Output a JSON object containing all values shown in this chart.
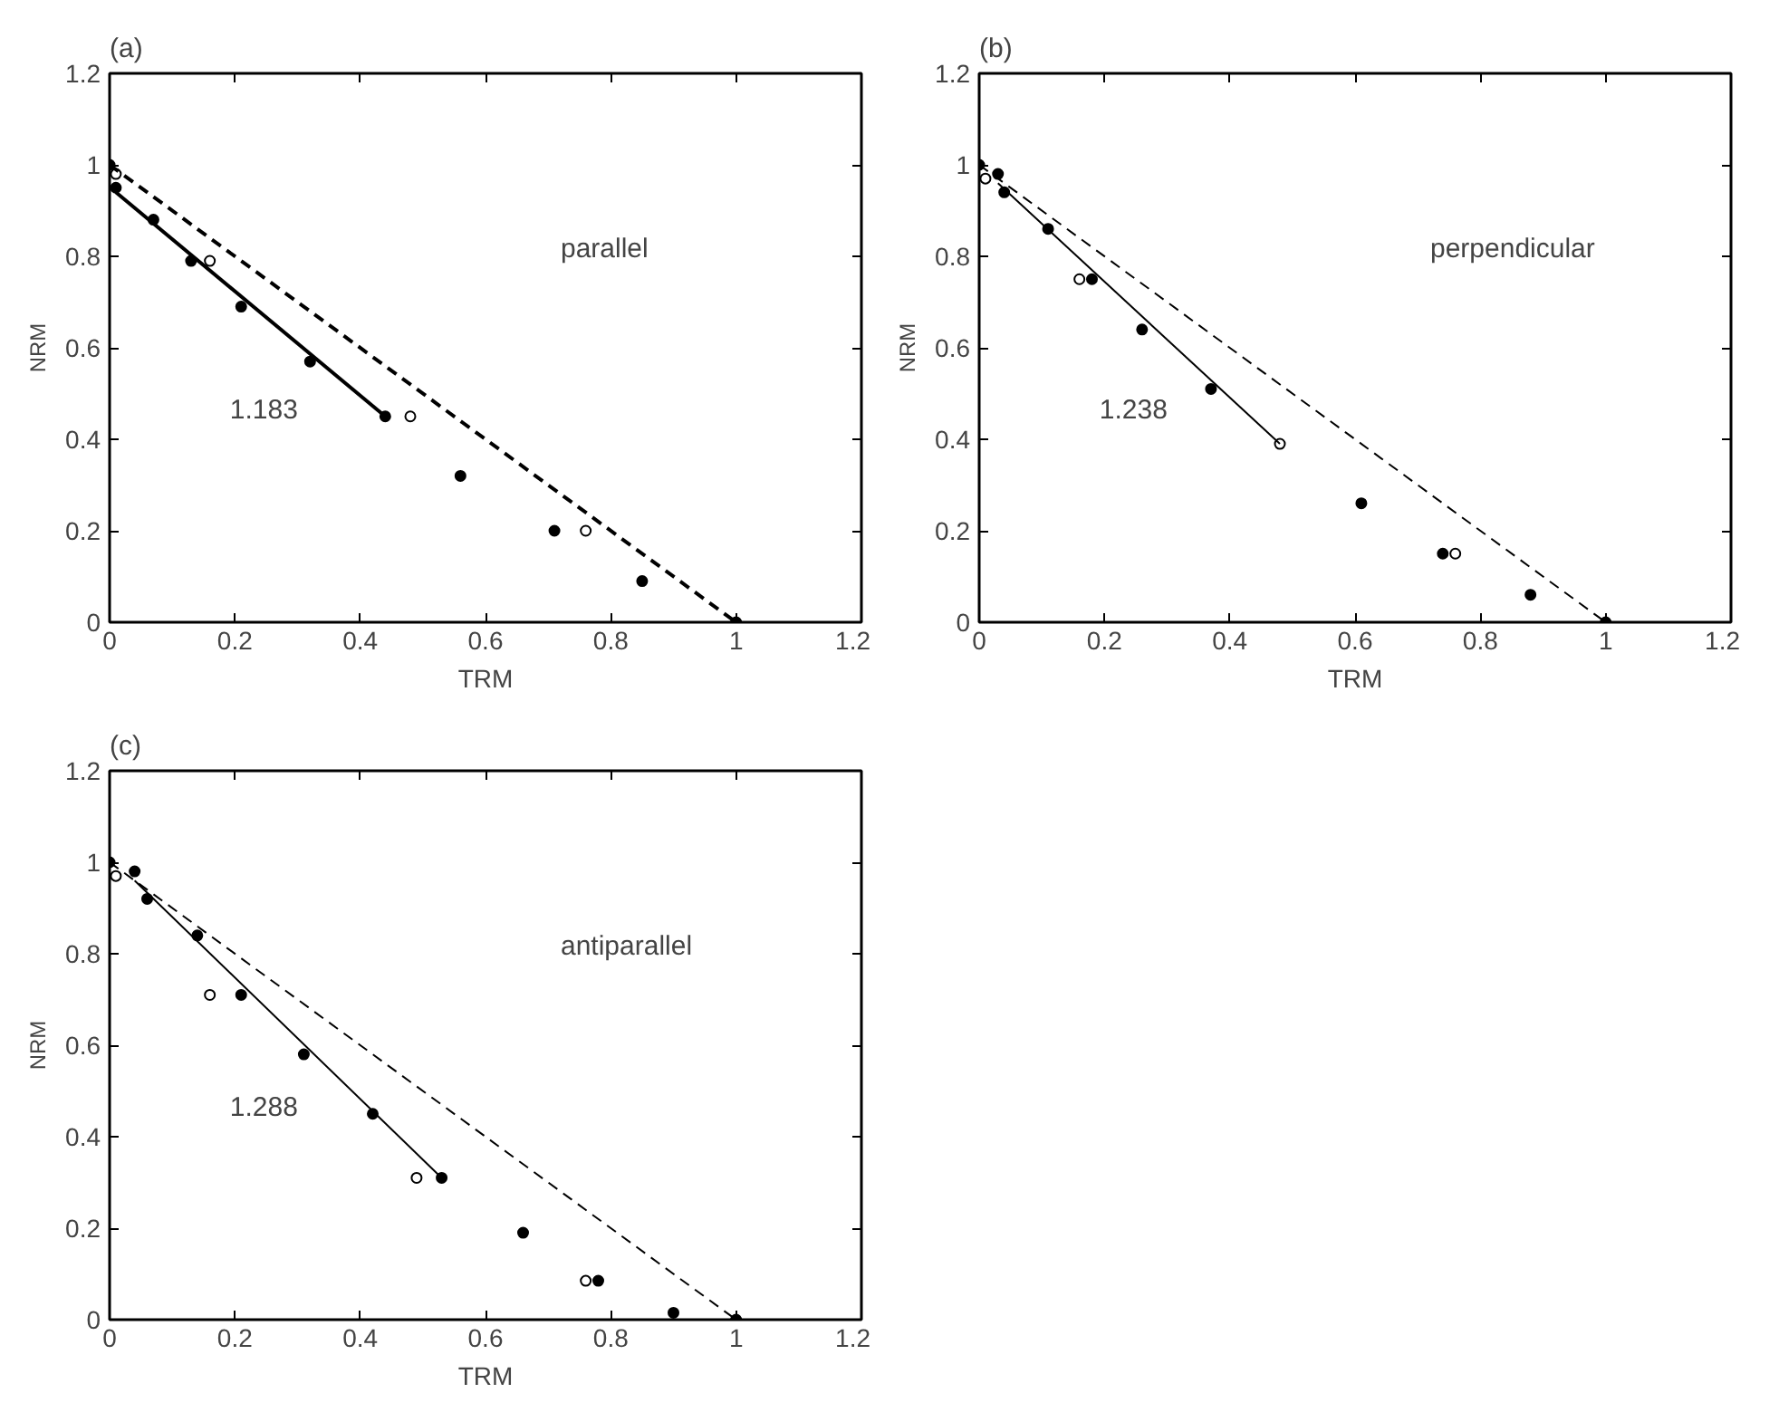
{
  "chart_data": [
    {
      "type": "scatter",
      "title": "(a)",
      "xlabel": "TRM",
      "ylabel": "NRM",
      "xlim": [
        0,
        1.2
      ],
      "ylim": [
        0,
        1.2
      ],
      "xticks": [
        0,
        0.2,
        0.4,
        0.6,
        0.8,
        1,
        1.2
      ],
      "yticks": [
        0,
        0.2,
        0.4,
        0.6,
        0.8,
        1,
        1.2
      ],
      "annotations": [
        "parallel",
        "1.183"
      ],
      "series": [
        {
          "marker": "circle",
          "color": "#000000",
          "x": [
            0,
            0.01,
            0.07,
            0.13,
            0.21,
            0.32,
            0.44,
            0.56,
            0.71,
            0.85,
            1.0
          ],
          "values": [
            1,
            0.95,
            0.88,
            0.79,
            0.69,
            0.57,
            0.45,
            0.32,
            0.2,
            0.09,
            0
          ]
        },
        {
          "marker": "circle",
          "color": "#ffffff",
          "x": [
            0.01,
            0.16,
            0.48,
            0.76
          ],
          "values": [
            0.98,
            0.79,
            0.45,
            0.2
          ]
        },
        {
          "type": "line",
          "line_style": "solid",
          "color": "#000000",
          "x": [
            0.01,
            0.44
          ],
          "values": [
            0.94,
            0.45
          ]
        },
        {
          "type": "line",
          "line_style": "dashed",
          "color": "#000000",
          "x": [
            0,
            1
          ],
          "values": [
            1,
            0
          ]
        }
      ]
    },
    {
      "type": "scatter",
      "title": "(b)",
      "xlabel": "TRM",
      "ylabel": "NRM",
      "xlim": [
        0,
        1.2
      ],
      "ylim": [
        0,
        1.2
      ],
      "xticks": [
        0,
        0.2,
        0.4,
        0.6,
        0.8,
        1,
        1.2
      ],
      "yticks": [
        0,
        0.2,
        0.4,
        0.6,
        0.8,
        1,
        1.2
      ],
      "annotations": [
        "perpendicular",
        "1.238"
      ],
      "series": [
        {
          "marker": "circle",
          "color": "#000000",
          "x": [
            0,
            0.03,
            0.04,
            0.11,
            0.18,
            0.26,
            0.37,
            0.61,
            0.74,
            0.88,
            1.0
          ],
          "values": [
            1,
            0.98,
            0.94,
            0.86,
            0.75,
            0.64,
            0.51,
            0.26,
            0.15,
            0.06,
            0
          ]
        },
        {
          "marker": "circle",
          "color": "#ffffff",
          "x": [
            0.01,
            0.16,
            0.48,
            0.76
          ],
          "values": [
            0.97,
            0.75,
            0.39,
            0.15
          ]
        },
        {
          "type": "line",
          "line_style": "solid",
          "color": "#000000",
          "x": [
            0.03,
            0.48
          ],
          "values": [
            0.96,
            0.39
          ]
        },
        {
          "type": "line",
          "line_style": "dashed",
          "color": "#000000",
          "x": [
            0,
            1
          ],
          "values": [
            1,
            0
          ]
        }
      ]
    },
    {
      "type": "scatter",
      "title": "(c)",
      "xlabel": "TRM",
      "ylabel": "NRM",
      "xlim": [
        0,
        1.2
      ],
      "ylim": [
        0,
        1.2
      ],
      "xticks": [
        0,
        0.2,
        0.4,
        0.6,
        0.8,
        1,
        1.2
      ],
      "yticks": [
        0,
        0.2,
        0.4,
        0.6,
        0.8,
        1,
        1.2
      ],
      "annotations": [
        "antiparallel",
        "1.288"
      ],
      "series": [
        {
          "marker": "circle",
          "color": "#000000",
          "x": [
            0,
            0.04,
            0.06,
            0.14,
            0.21,
            0.31,
            0.42,
            0.53,
            0.66,
            0.78,
            0.9,
            1.0
          ],
          "values": [
            1,
            0.98,
            0.92,
            0.84,
            0.71,
            0.58,
            0.45,
            0.31,
            0.19,
            0.085,
            0.015,
            0
          ]
        },
        {
          "marker": "circle",
          "color": "#ffffff",
          "x": [
            0.01,
            0.16,
            0.49,
            0.76
          ],
          "values": [
            0.97,
            0.71,
            0.31,
            0.085
          ]
        },
        {
          "type": "line",
          "line_style": "solid",
          "color": "#000000",
          "x": [
            0.04,
            0.53
          ],
          "values": [
            0.96,
            0.31
          ]
        },
        {
          "type": "line",
          "line_style": "dashed",
          "color": "#000000",
          "x": [
            0,
            1
          ],
          "values": [
            1,
            0
          ]
        }
      ]
    }
  ]
}
